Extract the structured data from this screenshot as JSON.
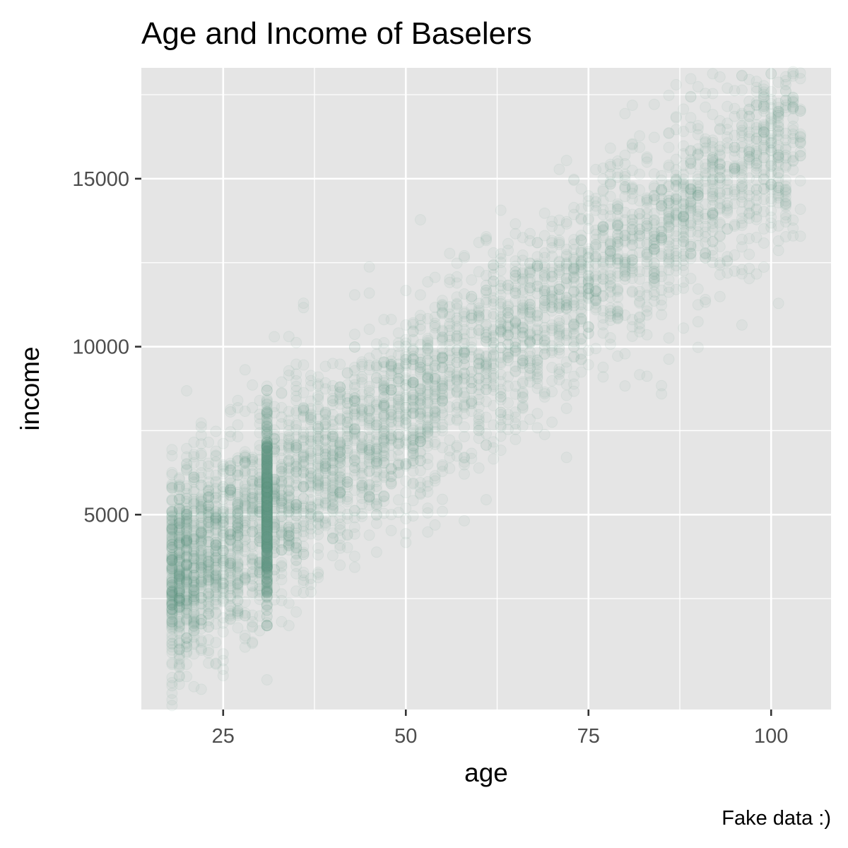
{
  "chart_data": {
    "type": "scatter",
    "title": "Age and Income of Baselers",
    "xlabel": "age",
    "ylabel": "income",
    "caption": "Fake data :)",
    "xlim": [
      13.8,
      108.2
    ],
    "ylim": [
      -800,
      18300
    ],
    "x_major_ticks": [
      25,
      50,
      75,
      100
    ],
    "x_minor_ticks": [
      37.5,
      62.5,
      87.5
    ],
    "y_major_ticks": [
      5000,
      10000,
      15000
    ],
    "y_minor_ticks": [
      2500,
      7500,
      12500,
      17500
    ],
    "x_tick_labels": [
      "25",
      "50",
      "75",
      "100"
    ],
    "y_tick_labels": [
      "5000",
      "10000",
      "15000"
    ],
    "grid": true,
    "point_color": "#5ea081",
    "point_alpha": 0.06,
    "panel_color": "#e5e5e5",
    "grid_color": "#ffffff",
    "trend": {
      "x_min": 18,
      "x_max": 104,
      "intercept": 400,
      "slope": 155,
      "spread": 1500
    },
    "vertical_cluster": {
      "x": 31,
      "y_min": 2300,
      "y_max": 8000
    }
  }
}
